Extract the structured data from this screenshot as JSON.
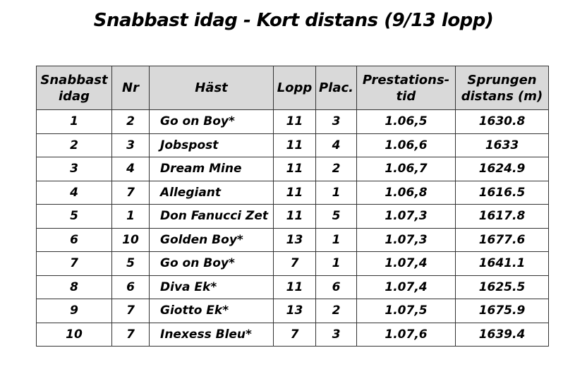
{
  "title": "Snabbast idag - Kort distans (9/13 lopp)",
  "table": {
    "headers": [
      {
        "line1": "Snabbast",
        "line2": "idag"
      },
      {
        "line1": "Nr",
        "line2": ""
      },
      {
        "line1": "Häst",
        "line2": ""
      },
      {
        "line1": "Lopp",
        "line2": ""
      },
      {
        "line1": "Plac.",
        "line2": ""
      },
      {
        "line1": "Prestations-",
        "line2": "tid"
      },
      {
        "line1": "Sprungen",
        "line2": "distans (m)"
      }
    ],
    "rows": [
      {
        "rank": "1",
        "nr": "2",
        "horse": "Go on Boy*",
        "race": "11",
        "place": "3",
        "time": "1.06,5",
        "distance": "1630.8"
      },
      {
        "rank": "2",
        "nr": "3",
        "horse": "Jobspost",
        "race": "11",
        "place": "4",
        "time": "1.06,6",
        "distance": "1633"
      },
      {
        "rank": "3",
        "nr": "4",
        "horse": "Dream Mine",
        "race": "11",
        "place": "2",
        "time": "1.06,7",
        "distance": "1624.9"
      },
      {
        "rank": "4",
        "nr": "7",
        "horse": "Allegiant",
        "race": "11",
        "place": "1",
        "time": "1.06,8",
        "distance": "1616.5"
      },
      {
        "rank": "5",
        "nr": "1",
        "horse": "Don Fanucci Zet",
        "race": "11",
        "place": "5",
        "time": "1.07,3",
        "distance": "1617.8"
      },
      {
        "rank": "6",
        "nr": "10",
        "horse": "Golden Boy*",
        "race": "13",
        "place": "1",
        "time": "1.07,3",
        "distance": "1677.6"
      },
      {
        "rank": "7",
        "nr": "5",
        "horse": "Go on Boy*",
        "race": "7",
        "place": "1",
        "time": "1.07,4",
        "distance": "1641.1"
      },
      {
        "rank": "8",
        "nr": "6",
        "horse": "Diva Ek*",
        "race": "11",
        "place": "6",
        "time": "1.07,4",
        "distance": "1625.5"
      },
      {
        "rank": "9",
        "nr": "7",
        "horse": "Giotto Ek*",
        "race": "13",
        "place": "2",
        "time": "1.07,5",
        "distance": "1675.9"
      },
      {
        "rank": "10",
        "nr": "7",
        "horse": "Inexess Bleu*",
        "race": "7",
        "place": "3",
        "time": "1.07,6",
        "distance": "1639.4"
      }
    ]
  },
  "colors": {
    "header_background": "#d9d9d9",
    "border": "#333333",
    "text": "#000000"
  }
}
